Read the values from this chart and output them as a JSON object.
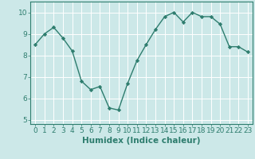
{
  "x": [
    0,
    1,
    2,
    3,
    4,
    5,
    6,
    7,
    8,
    9,
    10,
    11,
    12,
    13,
    14,
    15,
    16,
    17,
    18,
    19,
    20,
    21,
    22,
    23
  ],
  "y": [
    8.5,
    9.0,
    9.3,
    8.8,
    8.2,
    6.8,
    6.4,
    6.55,
    5.55,
    5.45,
    6.7,
    7.75,
    8.5,
    9.2,
    9.8,
    10.0,
    9.55,
    10.0,
    9.8,
    9.8,
    9.45,
    8.4,
    8.4,
    8.15
  ],
  "line_color": "#2e7d6e",
  "marker": "D",
  "marker_size": 2.2,
  "bg_color": "#cce8e8",
  "grid_color": "#ffffff",
  "xlabel": "Humidex (Indice chaleur)",
  "xlim": [
    -0.5,
    23.5
  ],
  "ylim": [
    4.8,
    10.5
  ],
  "yticks": [
    5,
    6,
    7,
    8,
    9,
    10
  ],
  "xticks": [
    0,
    1,
    2,
    3,
    4,
    5,
    6,
    7,
    8,
    9,
    10,
    11,
    12,
    13,
    14,
    15,
    16,
    17,
    18,
    19,
    20,
    21,
    22,
    23
  ],
  "xlabel_fontsize": 7.5,
  "tick_fontsize": 6.5,
  "axis_color": "#2e7d6e",
  "linewidth": 1.0
}
